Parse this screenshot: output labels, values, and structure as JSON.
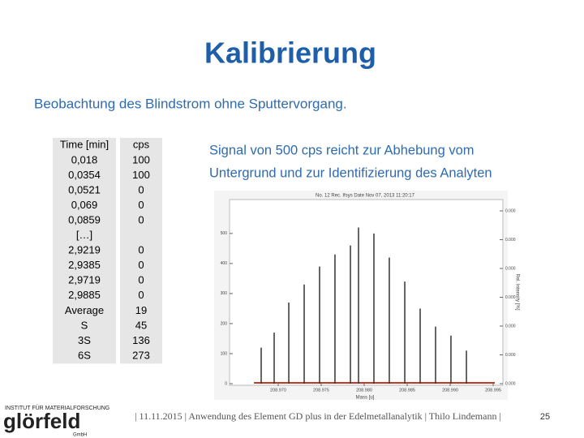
{
  "header": {
    "title": "Kalibrierung",
    "subtitle": "Beobachtung des Blindstrom ohne Sputtervorgang."
  },
  "table": {
    "columns": [
      "Time [min]",
      "cps"
    ],
    "rows": [
      [
        "0,018",
        "100"
      ],
      [
        "0,0354",
        "100"
      ],
      [
        "0,0521",
        "0"
      ],
      [
        "0,069",
        "0"
      ],
      [
        "0,0859",
        "0"
      ],
      [
        "[…]",
        null
      ],
      [
        "2,9219",
        "0"
      ],
      [
        "2,9385",
        "0"
      ],
      [
        "2,9719",
        "0"
      ],
      [
        "2,9885",
        "0"
      ],
      [
        "Average",
        "19"
      ],
      [
        "S",
        "45"
      ],
      [
        "3S",
        "136"
      ],
      [
        "6S",
        "273"
      ]
    ]
  },
  "note": [
    "Signal von 500 cps reicht zur Abhebung vom",
    "Untergrund und zur Identifizierung des Analyten"
  ],
  "spectrum": {
    "title": "No. 12 Rec. Ifsys Date Nov 07, 2013 11:20:17",
    "xlabel": "Mass [u]",
    "y2label": "Rel. Intensity [%]",
    "xlim": [
      208.96434,
      208.99613
    ],
    "ylim": [
      0,
      613
    ],
    "xticks": [
      {
        "value": 208.97,
        "label": "208.970"
      },
      {
        "value": 208.975,
        "label": "208.975"
      },
      {
        "value": 208.98,
        "label": "208.980"
      },
      {
        "value": 208.985,
        "label": "208.985"
      },
      {
        "value": 208.99,
        "label": "208.990"
      },
      {
        "value": 208.995,
        "label": "208.995"
      }
    ],
    "yticks": [
      0,
      100,
      200,
      300,
      400,
      500
    ],
    "y2ticks": [
      "0.000",
      "0.000",
      "0.000",
      "0.000",
      "0.000",
      "0.000",
      "0.000"
    ],
    "peaks": {
      "x": [
        208.96802,
        208.96953,
        208.97123,
        208.97302,
        208.97481,
        208.9766,
        208.9784,
        208.97934,
        208.98113,
        208.98292,
        208.98472,
        208.98651,
        208.9883,
        208.99009,
        208.99189
      ],
      "values": [
        120,
        170,
        270,
        330,
        390,
        430,
        460,
        520,
        500,
        420,
        340,
        250,
        190,
        160,
        110
      ],
      "color": "#333333"
    },
    "baseline_color": "#c0392b"
  },
  "footer": {
    "text": "| 11.11.2015 | Anwendung des Element GD plus in der Edelmetallanalytik | Thilo Lindemann |",
    "page": "25",
    "logo": {
      "top": "INSTITUT FÜR MATERIALFORSCHUNG",
      "name": "glörfeld",
      "bottom": "GmbH"
    }
  }
}
